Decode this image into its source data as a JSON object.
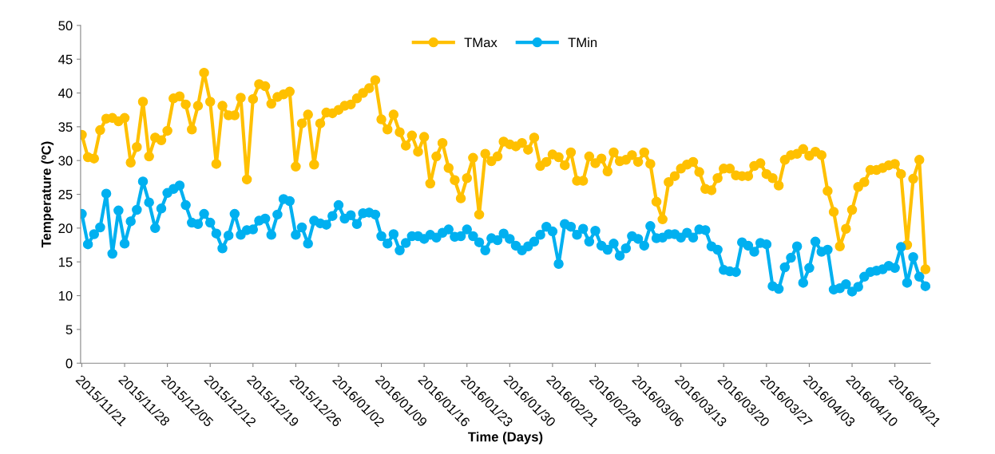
{
  "chart_data": {
    "type": "line",
    "xlabel": "Time (Days)",
    "ylabel": "Temperature (ºC)",
    "categories": [
      "2015/11/21",
      null,
      null,
      null,
      null,
      null,
      null,
      "2015/11/28",
      null,
      null,
      null,
      null,
      null,
      null,
      "2015/12/05",
      null,
      null,
      null,
      null,
      null,
      null,
      "2015/12/12",
      null,
      null,
      null,
      null,
      null,
      null,
      "2015/12/19",
      null,
      null,
      null,
      null,
      null,
      null,
      "2015/12/26",
      null,
      null,
      null,
      null,
      null,
      null,
      "2016/01/02",
      null,
      null,
      null,
      null,
      null,
      null,
      "2016/01/09",
      null,
      null,
      null,
      null,
      null,
      null,
      "2016/01/16",
      null,
      null,
      null,
      null,
      null,
      null,
      "2016/01/23",
      null,
      null,
      null,
      null,
      null,
      null,
      "2016/01/30",
      null,
      null,
      null,
      null,
      null,
      null,
      "2016/02/21",
      null,
      null,
      null,
      null,
      null,
      null,
      "2016/02/28",
      null,
      null,
      null,
      null,
      null,
      null,
      "2016/03/06",
      null,
      null,
      null,
      null,
      null,
      null,
      "2016/03/13",
      null,
      null,
      null,
      null,
      null,
      null,
      "2016/03/20",
      null,
      null,
      null,
      null,
      null,
      null,
      "2016/03/27",
      null,
      null,
      null,
      null,
      null,
      null,
      "2016/04/03",
      null,
      null,
      null,
      null,
      null,
      null,
      "2016/04/10",
      null,
      null,
      null,
      null,
      null,
      null,
      "2016/04/21",
      null,
      null,
      null,
      null,
      null
    ],
    "series": [
      {
        "name": "TMax",
        "color": "#ffc000",
        "values": [
          33.8,
          30.5,
          30.3,
          34.5,
          36.2,
          36.3,
          35.8,
          36.3,
          29.7,
          32.0,
          38.7,
          30.6,
          33.4,
          33.0,
          34.4,
          39.2,
          39.5,
          38.3,
          34.6,
          38.1,
          43.0,
          38.7,
          29.5,
          38.1,
          36.7,
          36.7,
          39.3,
          27.2,
          39.1,
          41.3,
          41.0,
          38.4,
          39.4,
          39.8,
          40.2,
          29.1,
          35.5,
          36.8,
          29.4,
          35.5,
          37.1,
          37.0,
          37.5,
          38.1,
          38.3,
          39.2,
          40.0,
          40.7,
          41.9,
          36.1,
          34.6,
          36.8,
          34.2,
          32.2,
          33.7,
          31.3,
          33.5,
          26.6,
          30.6,
          32.6,
          28.9,
          27.1,
          24.4,
          27.4,
          30.4,
          22.0,
          31.0,
          29.9,
          30.6,
          32.8,
          32.4,
          32.1,
          32.6,
          31.6,
          33.4,
          29.2,
          29.8,
          30.9,
          30.5,
          29.3,
          31.2,
          27.0,
          27.0,
          30.6,
          29.6,
          30.3,
          28.4,
          31.2,
          29.9,
          30.1,
          30.8,
          29.8,
          31.2,
          29.5,
          23.9,
          21.3,
          26.8,
          27.7,
          28.8,
          29.4,
          29.8,
          28.3,
          25.8,
          25.6,
          27.4,
          28.8,
          28.8,
          27.8,
          27.7,
          27.7,
          29.2,
          29.6,
          28.0,
          27.4,
          26.3,
          30.1,
          30.8,
          31.0,
          31.7,
          30.7,
          31.3,
          30.8,
          25.5,
          22.4,
          17.3,
          19.9,
          22.7,
          26.1,
          26.8,
          28.6,
          28.6,
          28.9,
          29.3,
          29.5,
          28.0,
          17.5,
          27.3,
          30.1,
          13.9
        ]
      },
      {
        "name": "TMin",
        "color": "#00b0f0",
        "values": [
          22.1,
          17.6,
          19.1,
          20.1,
          25.1,
          16.2,
          22.6,
          17.7,
          21.0,
          22.7,
          26.9,
          23.8,
          20.0,
          22.9,
          25.2,
          25.8,
          26.3,
          23.4,
          20.8,
          20.6,
          22.1,
          20.8,
          19.2,
          17.0,
          18.9,
          22.1,
          19.0,
          19.7,
          19.8,
          21.1,
          21.4,
          19.0,
          22.0,
          24.3,
          24.0,
          19.0,
          20.1,
          17.7,
          21.1,
          20.7,
          20.5,
          21.8,
          23.4,
          21.4,
          21.9,
          20.6,
          22.2,
          22.3,
          22.0,
          18.8,
          17.7,
          19.1,
          16.7,
          17.8,
          18.8,
          18.8,
          18.4,
          19.0,
          18.6,
          19.3,
          19.8,
          18.7,
          18.8,
          19.8,
          18.8,
          17.9,
          16.7,
          18.5,
          18.2,
          19.2,
          18.4,
          17.4,
          16.7,
          17.3,
          18.0,
          19.0,
          20.2,
          19.5,
          14.7,
          20.6,
          20.2,
          19.0,
          19.9,
          18.0,
          19.6,
          17.4,
          16.8,
          17.7,
          15.9,
          17.0,
          18.8,
          18.4,
          17.4,
          20.3,
          18.5,
          18.6,
          19.1,
          19.1,
          18.6,
          19.3,
          18.6,
          19.8,
          19.7,
          17.3,
          16.8,
          13.8,
          13.6,
          13.5,
          17.9,
          17.4,
          16.5,
          17.8,
          17.6,
          11.4,
          11.0,
          14.2,
          15.6,
          17.3,
          11.9,
          14.1,
          18.0,
          16.5,
          16.8,
          10.9,
          11.1,
          11.7,
          10.6,
          11.3,
          12.8,
          13.5,
          13.7,
          13.9,
          14.4,
          14.1,
          17.2,
          11.9,
          15.7,
          12.8,
          11.4
        ]
      }
    ],
    "ylim": [
      0,
      50
    ],
    "yticks": [
      0,
      5,
      10,
      15,
      20,
      25,
      30,
      35,
      40,
      45,
      50
    ],
    "marker": "circle",
    "line_style": "solid",
    "legend": "top"
  }
}
